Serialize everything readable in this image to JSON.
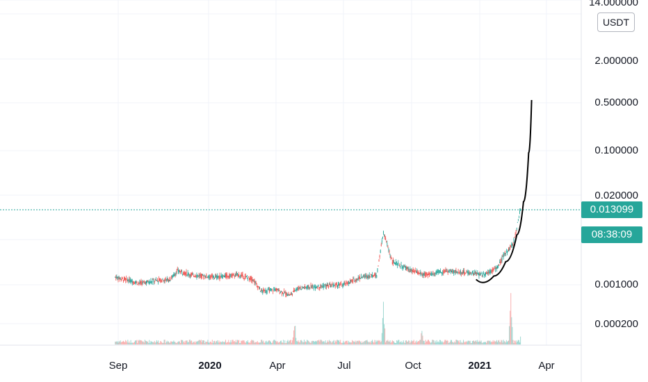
{
  "chart_data": {
    "type": "candlestick",
    "currency": "USDT",
    "y_scale": "log",
    "y_tick_labels": [
      "14.000000",
      "2.000000",
      "0.500000",
      "0.100000",
      "0.020000",
      "0.001000",
      "0.000200"
    ],
    "x_tick_labels": [
      "Sep",
      "2020",
      "Apr",
      "Jul",
      "Oct",
      "2021",
      "Apr"
    ],
    "last_price": "0.013099",
    "countdown": "08:38:09",
    "grid": true,
    "price_path": [
      {
        "date": "2019-08-28",
        "price": 0.0013
      },
      {
        "date": "2019-09-10",
        "price": 0.0012
      },
      {
        "date": "2019-10-01",
        "price": 0.00105
      },
      {
        "date": "2019-10-20",
        "price": 0.00115
      },
      {
        "date": "2019-11-10",
        "price": 0.0012
      },
      {
        "date": "2019-11-20",
        "price": 0.0016
      },
      {
        "date": "2019-12-10",
        "price": 0.0014
      },
      {
        "date": "2020-01-10",
        "price": 0.0013
      },
      {
        "date": "2020-02-10",
        "price": 0.0014
      },
      {
        "date": "2020-03-01",
        "price": 0.0012
      },
      {
        "date": "2020-03-12",
        "price": 0.0008
      },
      {
        "date": "2020-04-01",
        "price": 0.00085
      },
      {
        "date": "2020-04-20",
        "price": 0.0007
      },
      {
        "date": "2020-05-01",
        "price": 0.0009
      },
      {
        "date": "2020-06-01",
        "price": 0.00095
      },
      {
        "date": "2020-07-01",
        "price": 0.001
      },
      {
        "date": "2020-07-25",
        "price": 0.0013
      },
      {
        "date": "2020-08-15",
        "price": 0.0014
      },
      {
        "date": "2020-08-24",
        "price": 0.006
      },
      {
        "date": "2020-09-05",
        "price": 0.0022
      },
      {
        "date": "2020-10-01",
        "price": 0.0016
      },
      {
        "date": "2020-10-20",
        "price": 0.0014
      },
      {
        "date": "2020-11-15",
        "price": 0.0016
      },
      {
        "date": "2020-12-20",
        "price": 0.0015
      },
      {
        "date": "2021-01-05",
        "price": 0.0014
      },
      {
        "date": "2021-01-25",
        "price": 0.0018
      },
      {
        "date": "2021-02-05",
        "price": 0.003
      },
      {
        "date": "2021-02-15",
        "price": 0.004
      },
      {
        "date": "2021-02-25",
        "price": 0.013099
      }
    ],
    "projection_curve": [
      {
        "date": "2020-12-27",
        "price": 0.0012
      },
      {
        "date": "2021-01-05",
        "price": 0.00108
      },
      {
        "date": "2021-01-20",
        "price": 0.00135
      },
      {
        "date": "2021-02-05",
        "price": 0.0022
      },
      {
        "date": "2021-02-20",
        "price": 0.0055
      },
      {
        "date": "2021-03-01",
        "price": 0.017
      },
      {
        "date": "2021-03-08",
        "price": 0.09
      },
      {
        "date": "2021-03-12",
        "price": 0.55
      }
    ],
    "volume_spikes": [
      {
        "date": "2020-04-26",
        "level": 0.6
      },
      {
        "date": "2020-08-24",
        "level": 1.0
      },
      {
        "date": "2020-10-15",
        "level": 0.35
      },
      {
        "date": "2021-02-12",
        "level": 1.3
      },
      {
        "date": "2021-02-27",
        "level": 0.6
      }
    ]
  }
}
